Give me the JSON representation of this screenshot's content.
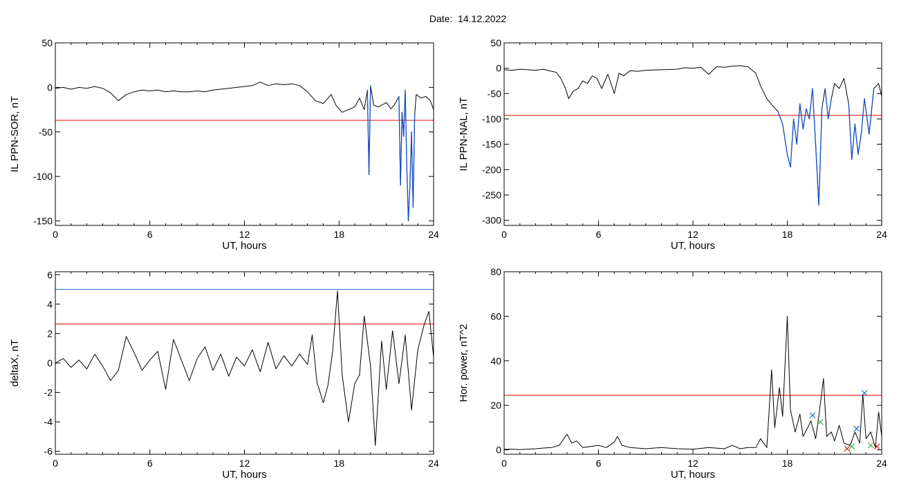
{
  "header": {
    "date_label": "Date:  14.12.2022"
  },
  "colors": {
    "trace": "#000000",
    "threshold_red": "#e00000",
    "threshold_blue": "#1f6fd1",
    "highlight_blue": "#1450c8",
    "marker_blue": "#1f6fd1",
    "marker_green": "#3cb34a",
    "marker_red": "#cc2222"
  },
  "chart_data": [
    {
      "type": "line",
      "ylabel": "IL PPN-SOR, nT",
      "xlabel": "UT, hours",
      "xlim": [
        0,
        24
      ],
      "ylim": [
        -155,
        50
      ],
      "xticks": [
        0,
        6,
        12,
        18,
        24
      ],
      "yticks": [
        50,
        0,
        -50,
        -100,
        -150
      ],
      "threshold_red": -37,
      "highlight_below": -37,
      "series": [
        {
          "points": [
            [
              0,
              -1
            ],
            [
              0.5,
              0
            ],
            [
              1,
              -2
            ],
            [
              1.5,
              0
            ],
            [
              2,
              -1
            ],
            [
              2.5,
              1
            ],
            [
              3,
              -1
            ],
            [
              3.5,
              -6
            ],
            [
              4,
              -15
            ],
            [
              4.5,
              -8
            ],
            [
              5,
              -5
            ],
            [
              5.5,
              -3
            ],
            [
              6,
              -4
            ],
            [
              6.5,
              -3
            ],
            [
              7,
              -5
            ],
            [
              7.5,
              -4
            ],
            [
              8,
              -5
            ],
            [
              8.5,
              -5
            ],
            [
              9,
              -4
            ],
            [
              9.5,
              -5
            ],
            [
              10,
              -3
            ],
            [
              10.5,
              -2
            ],
            [
              11,
              -1
            ],
            [
              11.5,
              0
            ],
            [
              12,
              1
            ],
            [
              12.5,
              2
            ],
            [
              13,
              6
            ],
            [
              13.5,
              2
            ],
            [
              14,
              4
            ],
            [
              14.5,
              3
            ],
            [
              15,
              4
            ],
            [
              15.5,
              2
            ],
            [
              16,
              -5
            ],
            [
              16.5,
              -15
            ],
            [
              17,
              -18
            ],
            [
              17.5,
              -8
            ],
            [
              17.8,
              -20
            ],
            [
              18.2,
              -28
            ],
            [
              18.6,
              -25
            ],
            [
              19,
              -22
            ],
            [
              19.3,
              -12
            ],
            [
              19.6,
              -25
            ],
            [
              19.8,
              -3
            ],
            [
              19.9,
              -98
            ],
            [
              20.0,
              2
            ],
            [
              20.2,
              -20
            ],
            [
              20.5,
              -22
            ],
            [
              21,
              -17
            ],
            [
              21.3,
              -24
            ],
            [
              21.5,
              -20
            ],
            [
              21.8,
              -10
            ],
            [
              21.9,
              -110
            ],
            [
              22.0,
              -28
            ],
            [
              22.1,
              -55
            ],
            [
              22.2,
              -3
            ],
            [
              22.3,
              -90
            ],
            [
              22.4,
              -150
            ],
            [
              22.5,
              -110
            ],
            [
              22.6,
              -50
            ],
            [
              22.7,
              -135
            ],
            [
              22.8,
              -30
            ],
            [
              22.9,
              -8
            ],
            [
              23.2,
              -12
            ],
            [
              23.5,
              -10
            ],
            [
              23.8,
              -15
            ],
            [
              24,
              -25
            ]
          ]
        }
      ]
    },
    {
      "type": "line",
      "ylabel": "IL PPN-NAL, nT",
      "xlabel": "UT, hours",
      "xlim": [
        0,
        24
      ],
      "ylim": [
        -310,
        50
      ],
      "xticks": [
        0,
        6,
        12,
        18,
        24
      ],
      "yticks": [
        50,
        0,
        -50,
        -100,
        -150,
        -200,
        -250,
        -300
      ],
      "threshold_red": -93,
      "highlight_below": -93,
      "series": [
        {
          "points": [
            [
              0,
              -3
            ],
            [
              0.5,
              -4
            ],
            [
              1,
              -2
            ],
            [
              1.5,
              -3
            ],
            [
              2,
              -4
            ],
            [
              2.5,
              -2
            ],
            [
              3,
              -6
            ],
            [
              3.3,
              -8
            ],
            [
              3.6,
              -20
            ],
            [
              3.9,
              -40
            ],
            [
              4.1,
              -60
            ],
            [
              4.4,
              -45
            ],
            [
              4.7,
              -40
            ],
            [
              5,
              -25
            ],
            [
              5.3,
              -30
            ],
            [
              5.6,
              -15
            ],
            [
              5.9,
              -20
            ],
            [
              6.2,
              -40
            ],
            [
              6.6,
              -12
            ],
            [
              7,
              -50
            ],
            [
              7.3,
              -10
            ],
            [
              7.6,
              -15
            ],
            [
              8,
              -5
            ],
            [
              8.5,
              -6
            ],
            [
              9,
              -4
            ],
            [
              10,
              -3
            ],
            [
              11,
              -2
            ],
            [
              11.5,
              1
            ],
            [
              12,
              0
            ],
            [
              12.5,
              2
            ],
            [
              13,
              -12
            ],
            [
              13.5,
              3
            ],
            [
              14,
              2
            ],
            [
              14.5,
              4
            ],
            [
              15,
              5
            ],
            [
              15.5,
              3
            ],
            [
              16,
              -10
            ],
            [
              16.3,
              -35
            ],
            [
              16.7,
              -60
            ],
            [
              17.1,
              -75
            ],
            [
              17.4,
              -85
            ],
            [
              17.7,
              -110
            ],
            [
              18.0,
              -170
            ],
            [
              18.2,
              -195
            ],
            [
              18.4,
              -100
            ],
            [
              18.6,
              -150
            ],
            [
              18.8,
              -70
            ],
            [
              19.0,
              -120
            ],
            [
              19.2,
              -80
            ],
            [
              19.4,
              -100
            ],
            [
              19.6,
              -40
            ],
            [
              19.8,
              -150
            ],
            [
              20.0,
              -270
            ],
            [
              20.2,
              -80
            ],
            [
              20.4,
              -40
            ],
            [
              20.6,
              -100
            ],
            [
              20.8,
              -60
            ],
            [
              21.0,
              -30
            ],
            [
              21.3,
              -40
            ],
            [
              21.6,
              -20
            ],
            [
              21.9,
              -70
            ],
            [
              22.1,
              -180
            ],
            [
              22.3,
              -110
            ],
            [
              22.5,
              -170
            ],
            [
              22.7,
              -130
            ],
            [
              22.9,
              -60
            ],
            [
              23.2,
              -130
            ],
            [
              23.5,
              -40
            ],
            [
              23.8,
              -30
            ],
            [
              24,
              -55
            ]
          ]
        }
      ]
    },
    {
      "type": "line",
      "ylabel": "deltaX, nT",
      "xlabel": "UT, hours",
      "xlim": [
        0,
        24
      ],
      "ylim": [
        -6.2,
        6.2
      ],
      "xticks": [
        0,
        6,
        12,
        18,
        24
      ],
      "yticks": [
        6,
        4,
        2,
        0,
        -2,
        -4,
        -6
      ],
      "threshold_red": 2.65,
      "threshold_blue": 5.0,
      "series": [
        {
          "points": [
            [
              0,
              0
            ],
            [
              0.5,
              0.3
            ],
            [
              1,
              -0.3
            ],
            [
              1.5,
              0.2
            ],
            [
              2,
              -0.4
            ],
            [
              2.5,
              0.6
            ],
            [
              3,
              -0.2
            ],
            [
              3.5,
              -1.2
            ],
            [
              4,
              -0.5
            ],
            [
              4.5,
              1.8
            ],
            [
              5,
              0.7
            ],
            [
              5.5,
              -0.5
            ],
            [
              6,
              0.2
            ],
            [
              6.5,
              0.8
            ],
            [
              7,
              -1.8
            ],
            [
              7.5,
              1.6
            ],
            [
              8,
              0.2
            ],
            [
              8.5,
              -1.2
            ],
            [
              9,
              0.3
            ],
            [
              9.5,
              1.1
            ],
            [
              10,
              -0.5
            ],
            [
              10.5,
              0.6
            ],
            [
              11,
              -0.9
            ],
            [
              11.5,
              0.4
            ],
            [
              12,
              -0.2
            ],
            [
              12.5,
              0.9
            ],
            [
              13,
              -0.6
            ],
            [
              13.5,
              1.4
            ],
            [
              14,
              -0.4
            ],
            [
              14.5,
              0.5
            ],
            [
              15,
              -0.2
            ],
            [
              15.5,
              0.6
            ],
            [
              16,
              -0.1
            ],
            [
              16.3,
              1.9
            ],
            [
              16.6,
              -1.3
            ],
            [
              17,
              -2.7
            ],
            [
              17.3,
              -1.5
            ],
            [
              17.6,
              0.8
            ],
            [
              17.9,
              4.9
            ],
            [
              18.2,
              -0.8
            ],
            [
              18.6,
              -4.0
            ],
            [
              19.0,
              -1.4
            ],
            [
              19.3,
              -0.8
            ],
            [
              19.6,
              3.2
            ],
            [
              20.0,
              -0.2
            ],
            [
              20.3,
              -5.6
            ],
            [
              20.7,
              1.5
            ],
            [
              21.0,
              -1.8
            ],
            [
              21.4,
              2.2
            ],
            [
              21.8,
              -1.4
            ],
            [
              22.2,
              1.9
            ],
            [
              22.6,
              -3.2
            ],
            [
              23.0,
              0.9
            ],
            [
              23.4,
              2.6
            ],
            [
              23.7,
              3.5
            ],
            [
              24,
              0.4
            ]
          ]
        }
      ]
    },
    {
      "type": "line",
      "ylabel": "Hor. power, nT^2",
      "xlabel": "UT, hours",
      "xlim": [
        0,
        24
      ],
      "ylim": [
        -2,
        80
      ],
      "xticks": [
        0,
        6,
        12,
        18,
        24
      ],
      "yticks": [
        80,
        60,
        40,
        20,
        0
      ],
      "threshold_red": 24.5,
      "series": [
        {
          "points": [
            [
              0,
              0.2
            ],
            [
              0.5,
              0.3
            ],
            [
              1,
              0.1
            ],
            [
              1.5,
              0.3
            ],
            [
              2,
              0.5
            ],
            [
              2.5,
              0.8
            ],
            [
              3,
              1
            ],
            [
              3.5,
              2
            ],
            [
              4,
              7
            ],
            [
              4.3,
              3
            ],
            [
              4.6,
              4
            ],
            [
              5,
              1
            ],
            [
              5.5,
              1.5
            ],
            [
              6,
              2
            ],
            [
              6.5,
              1
            ],
            [
              7,
              3.5
            ],
            [
              7.2,
              6
            ],
            [
              7.5,
              2
            ],
            [
              8,
              1
            ],
            [
              9,
              0.5
            ],
            [
              10,
              1
            ],
            [
              11,
              0.5
            ],
            [
              12,
              0.3
            ],
            [
              13,
              1
            ],
            [
              14,
              0.5
            ],
            [
              14.5,
              2
            ],
            [
              15,
              0.5
            ],
            [
              15.5,
              1
            ],
            [
              16,
              1
            ],
            [
              16.3,
              5
            ],
            [
              16.7,
              1
            ],
            [
              17.0,
              36
            ],
            [
              17.2,
              10
            ],
            [
              17.5,
              28
            ],
            [
              17.7,
              15
            ],
            [
              18.0,
              60
            ],
            [
              18.2,
              18
            ],
            [
              18.5,
              8
            ],
            [
              18.8,
              16
            ],
            [
              19.0,
              6
            ],
            [
              19.3,
              10
            ],
            [
              19.5,
              13
            ],
            [
              19.8,
              5
            ],
            [
              20.0,
              15
            ],
            [
              20.3,
              32
            ],
            [
              20.5,
              6
            ],
            [
              20.8,
              8
            ],
            [
              21.0,
              4
            ],
            [
              21.3,
              11
            ],
            [
              21.6,
              3
            ],
            [
              22.0,
              2
            ],
            [
              22.3,
              8
            ],
            [
              22.6,
              3
            ],
            [
              22.8,
              25
            ],
            [
              23.0,
              5
            ],
            [
              23.3,
              8
            ],
            [
              23.6,
              1
            ],
            [
              23.8,
              17
            ],
            [
              24,
              6
            ]
          ]
        }
      ],
      "markers": [
        {
          "x": 19.6,
          "y": 15.5,
          "color": "marker_blue"
        },
        {
          "x": 20.1,
          "y": 12.5,
          "color": "marker_green"
        },
        {
          "x": 21.8,
          "y": 0.5,
          "color": "marker_red"
        },
        {
          "x": 22.1,
          "y": 1.5,
          "color": "marker_green"
        },
        {
          "x": 22.4,
          "y": 9.5,
          "color": "marker_blue"
        },
        {
          "x": 22.9,
          "y": 25.5,
          "color": "marker_blue"
        },
        {
          "x": 23.3,
          "y": 2.0,
          "color": "marker_green"
        },
        {
          "x": 23.7,
          "y": 1.5,
          "color": "marker_red"
        }
      ]
    }
  ]
}
